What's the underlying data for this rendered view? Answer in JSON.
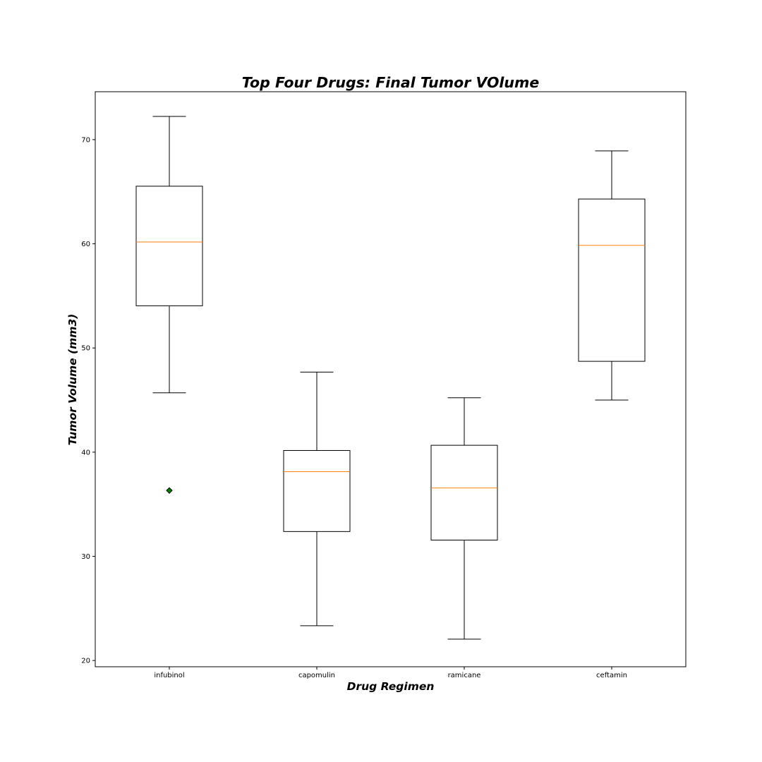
{
  "chart_data": {
    "type": "box",
    "title": "Top Four Drugs: Final Tumor VOlume",
    "xlabel": "Drug Regimen",
    "ylabel": "Tumor Volume (mm3)",
    "ylim": [
      19.4,
      74.6
    ],
    "yticks": [
      20,
      30,
      40,
      50,
      60,
      70
    ],
    "grid": false,
    "categories": [
      "infubinol",
      "capomulin",
      "ramicane",
      "ceftamin"
    ],
    "boxes": [
      {
        "label": "infubinol",
        "whisker_low": 45.7,
        "q1": 54.05,
        "median": 60.17,
        "q3": 65.53,
        "whisker_high": 72.23,
        "outliers": [
          36.32
        ]
      },
      {
        "label": "capomulin",
        "whisker_low": 23.34,
        "q1": 32.38,
        "median": 38.13,
        "q3": 40.16,
        "whisker_high": 47.69,
        "outliers": []
      },
      {
        "label": "ramicane",
        "whisker_low": 22.05,
        "q1": 31.56,
        "median": 36.56,
        "q3": 40.66,
        "whisker_high": 45.22,
        "outliers": []
      },
      {
        "label": "ceftamin",
        "whisker_low": 45.0,
        "q1": 48.72,
        "median": 59.85,
        "q3": 64.3,
        "whisker_high": 68.92,
        "outliers": []
      }
    ],
    "colors": {
      "box": "#000000",
      "median": "#ff7f0e",
      "outlier_fill": "#008000",
      "outlier_edge": "#000000"
    },
    "outlier_marker": "diamond"
  }
}
